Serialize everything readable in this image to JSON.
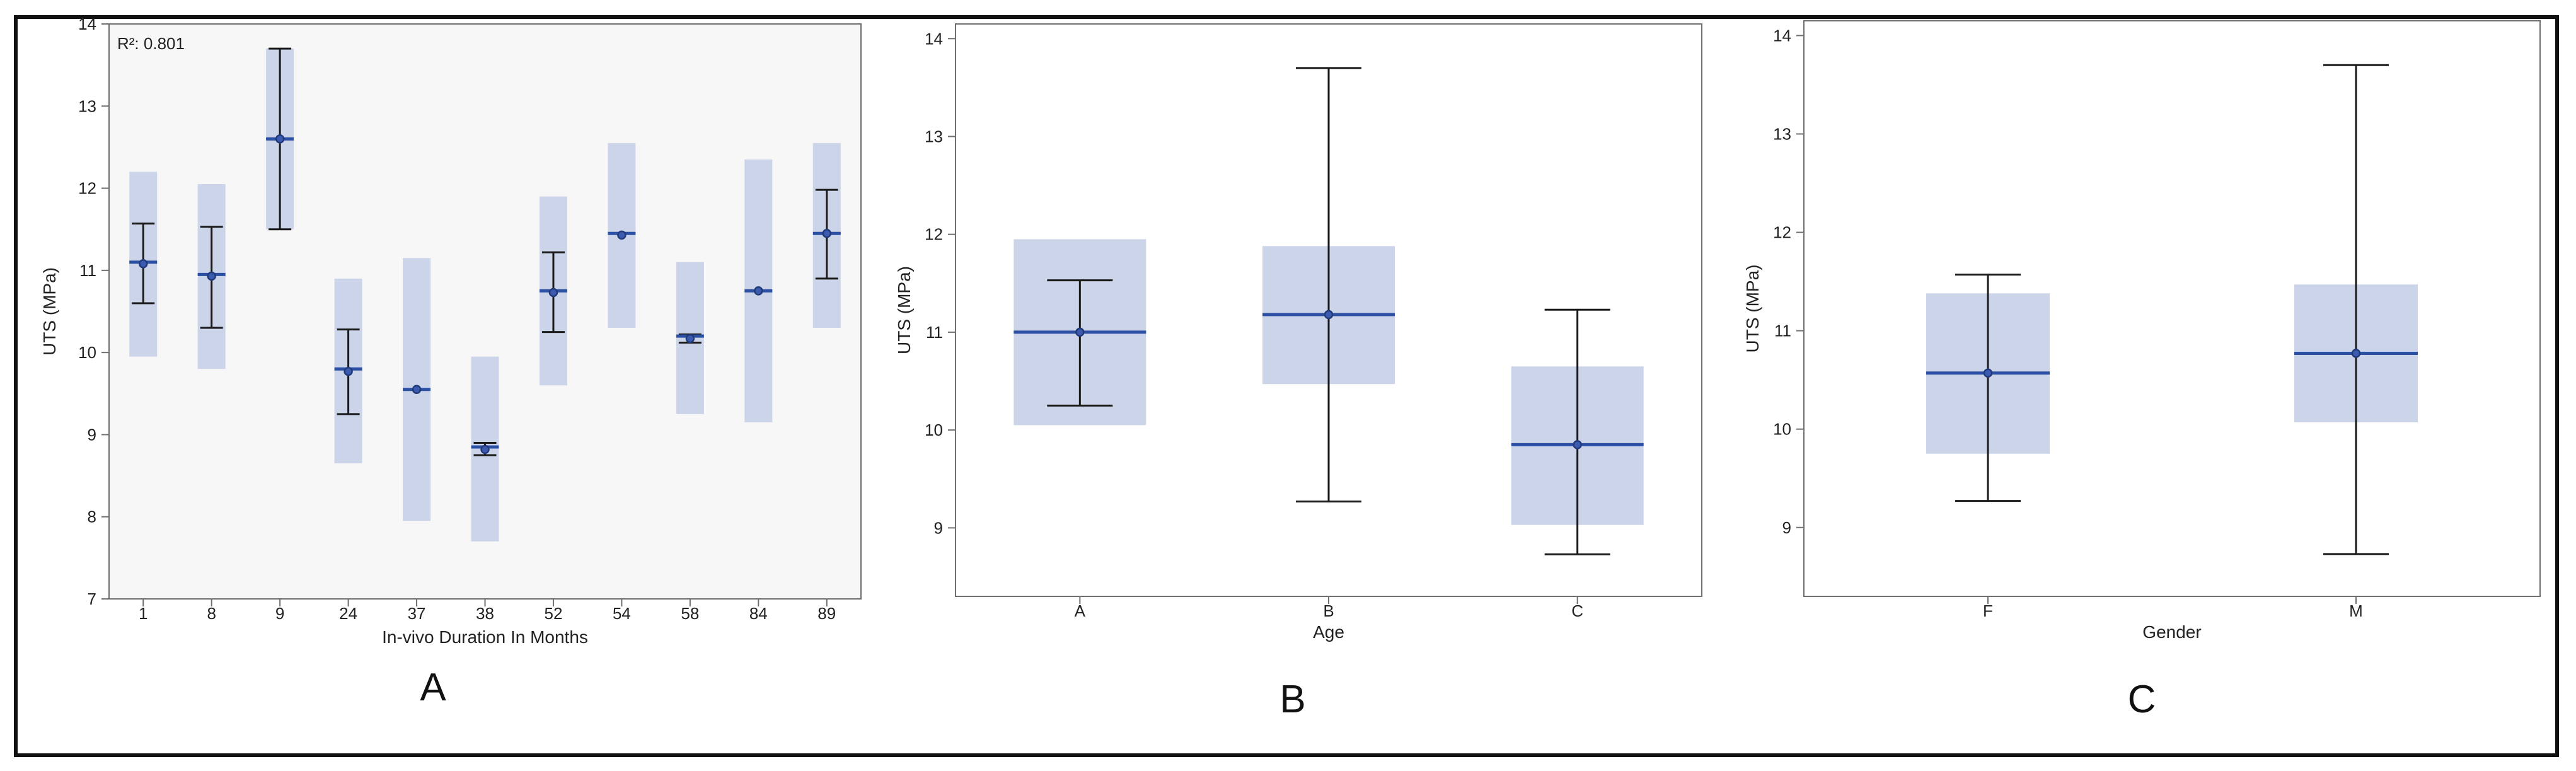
{
  "chart_data": [
    {
      "type": "box",
      "panel_label": "A",
      "annotation": "R²: 0.801",
      "xlabel": "In-vivo Duration In Months",
      "ylabel": "UTS (MPa)",
      "ylim": [
        7,
        14
      ],
      "yticks": [
        "7",
        "8",
        "9",
        "10",
        "11",
        "12",
        "13",
        "14"
      ],
      "categories": [
        "1",
        "8",
        "9",
        "24",
        "37",
        "38",
        "52",
        "54",
        "58",
        "84",
        "89"
      ],
      "box_low": [
        9.95,
        9.8,
        11.5,
        8.65,
        7.95,
        7.7,
        9.6,
        10.3,
        9.25,
        9.15,
        10.3
      ],
      "box_high": [
        12.2,
        12.05,
        13.7,
        10.9,
        11.15,
        9.95,
        11.9,
        12.55,
        11.1,
        12.35,
        12.55
      ],
      "median": [
        11.1,
        10.95,
        12.6,
        9.8,
        9.55,
        8.85,
        10.75,
        11.45,
        10.2,
        10.75,
        11.45
      ],
      "mean": [
        11.08,
        10.93,
        12.6,
        9.77,
        9.55,
        8.82,
        10.73,
        11.43,
        10.17,
        10.75,
        11.45
      ],
      "whisker_low": [
        10.6,
        10.3,
        11.5,
        9.25,
        null,
        8.75,
        10.25,
        null,
        10.12,
        null,
        10.9
      ],
      "whisker_high": [
        11.57,
        11.53,
        13.7,
        10.28,
        null,
        8.9,
        11.22,
        null,
        10.22,
        null,
        11.98
      ]
    },
    {
      "type": "box",
      "panel_label": "B",
      "xlabel": "Age",
      "ylabel": "UTS (MPa)",
      "ylim": [
        8.3,
        14.15
      ],
      "yticks": [
        "9",
        "10",
        "11",
        "12",
        "13",
        "14"
      ],
      "categories": [
        "A",
        "B",
        "C"
      ],
      "box_low": [
        10.05,
        10.47,
        9.03
      ],
      "box_high": [
        11.95,
        11.88,
        10.65
      ],
      "median": [
        11.0,
        11.18,
        9.85
      ],
      "mean": [
        11.0,
        11.18,
        9.85
      ],
      "whisker_low": [
        10.25,
        9.27,
        8.73
      ],
      "whisker_high": [
        11.53,
        13.7,
        11.23
      ]
    },
    {
      "type": "box",
      "panel_label": "C",
      "xlabel": "Gender",
      "ylabel": "UTS (MPa)",
      "ylim": [
        8.3,
        14.15
      ],
      "yticks": [
        "9",
        "10",
        "11",
        "12",
        "13",
        "14"
      ],
      "categories": [
        "F",
        "M"
      ],
      "box_low": [
        9.75,
        10.07
      ],
      "box_high": [
        11.38,
        11.47
      ],
      "median": [
        10.57,
        10.77
      ],
      "mean": [
        10.57,
        10.77
      ],
      "whisker_low": [
        9.27,
        8.73
      ],
      "whisker_high": [
        11.57,
        13.7
      ]
    }
  ],
  "colors": {
    "box_fill": "#cbd4e8",
    "median_line": "#2b4fa3",
    "whisker": "#1a1a1a",
    "mean_marker": "#223a7a",
    "axis": "#6f6f6f",
    "text": "#222222"
  }
}
